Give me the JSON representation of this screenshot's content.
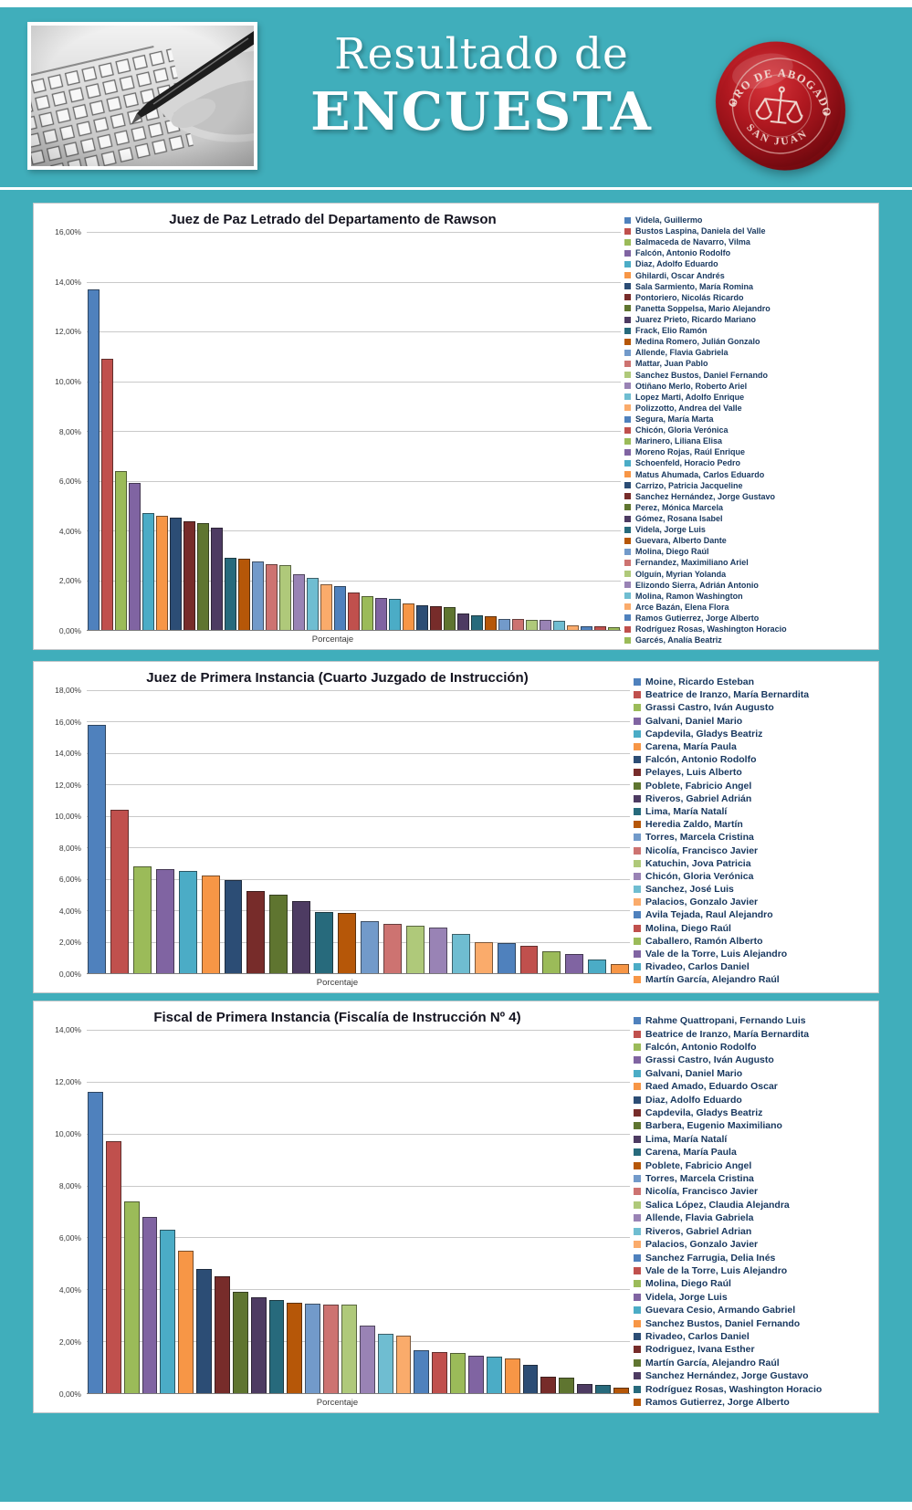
{
  "header": {
    "title_line1": "Resultado de",
    "title_line2": "ENCUESTA",
    "seal_top": "FORO DE ABOGADOS",
    "seal_bottom": "SAN JUAN",
    "seal_star": "✦"
  },
  "colors": {
    "background": "#40AEBB",
    "seal_wax": "#A6141B",
    "legend_text": "#17375E"
  },
  "palette": [
    "#4F81BD",
    "#C0504D",
    "#9BBB59",
    "#8064A2",
    "#4BACC6",
    "#F79646",
    "#2C4D75",
    "#772C2A",
    "#5F7530",
    "#4D3B62",
    "#276A7C",
    "#B65708",
    "#729ACA",
    "#CD7371",
    "#AFC97A",
    "#9983B5",
    "#6FBDD1",
    "#FAAB6B"
  ],
  "chart_data": [
    {
      "type": "bar",
      "title": "Juez de Paz Letrado del Departamento de Rawson",
      "xlabel": "Porcentaje",
      "ylim": [
        0,
        16
      ],
      "yticks": [
        "16,00%",
        "14,00%",
        "12,00%",
        "10,00%",
        "8,00%",
        "6,00%",
        "4,00%",
        "2,00%",
        "0,00%"
      ],
      "grid": true,
      "legend_position": "right",
      "categories": [
        "Videla, Guillermo",
        "Bustos Laspina, Daniela del Valle",
        "Balmaceda de Navarro, Vilma",
        "Falcón, Antonio Rodolfo",
        "Diaz, Adolfo Eduardo",
        "Ghilardi, Oscar Andrés",
        "Sala Sarmiento, María Romina",
        "Pontoriero, Nicolás Ricardo",
        "Panetta Soppelsa, Mario Alejandro",
        "Juarez Prieto, Ricardo Mariano",
        "Frack, Elio Ramón",
        "Medina Romero, Julián Gonzalo",
        "Allende, Flavia Gabriela",
        "Mattar, Juan Pablo",
        "Sanchez Bustos, Daniel Fernando",
        "Otiñano Merlo, Roberto Ariel",
        "Lopez Marti, Adolfo Enrique",
        "Polizzotto, Andrea del Valle",
        "Segura, María Marta",
        "Chicón, Gloria Verónica",
        "Marinero, Liliana Elisa",
        "Moreno Rojas, Raúl Enrique",
        "Schoenfeld, Horacio Pedro",
        "Matus Ahumada, Carlos Eduardo",
        "Carrizo, Patricia Jacqueline",
        "Sanchez Hernández, Jorge Gustavo",
        "Perez, Mónica Marcela",
        "Gómez, Rosana Isabel",
        "Videla, Jorge Luis",
        "Guevara, Alberto Dante",
        "Molina, Diego Raúl",
        "Fernandez, Maximiliano Ariel",
        "Olguín, Myrian Yolanda",
        "Elizondo Sierra, Adrián Antonio",
        "Molina, Ramon Washington",
        "Arce Bazán, Elena Flora",
        "Ramos Gutierrez, Jorge Alberto",
        "Rodríguez Rosas, Washington Horacio",
        "Garcés, Analía Beatriz"
      ],
      "values": [
        13.7,
        10.9,
        6.4,
        5.9,
        4.7,
        4.6,
        4.5,
        4.35,
        4.3,
        4.1,
        2.9,
        2.85,
        2.75,
        2.65,
        2.6,
        2.25,
        2.1,
        1.85,
        1.75,
        1.5,
        1.35,
        1.3,
        1.25,
        1.05,
        1.0,
        0.95,
        0.9,
        0.65,
        0.6,
        0.55,
        0.45,
        0.45,
        0.4,
        0.4,
        0.35,
        0.2,
        0.15,
        0.15,
        0.1
      ]
    },
    {
      "type": "bar",
      "title": "Juez de Primera Instancia (Cuarto Juzgado de Instrucción)",
      "xlabel": "Porcentaje",
      "ylim": [
        0,
        18
      ],
      "yticks": [
        "18,00%",
        "16,00%",
        "14,00%",
        "12,00%",
        "10,00%",
        "8,00%",
        "6,00%",
        "4,00%",
        "2,00%",
        "0,00%"
      ],
      "grid": true,
      "legend_position": "right",
      "categories": [
        "Moine, Ricardo Esteban",
        "Beatrice de Iranzo, María Bernardita",
        "Grassi Castro, Iván Augusto",
        "Galvani, Daniel Mario",
        "Capdevila, Gladys Beatriz",
        "Carena, María Paula",
        "Falcón, Antonio Rodolfo",
        "Pelayes, Luis Alberto",
        "Poblete, Fabricio Angel",
        "Riveros, Gabriel Adrián",
        "Lima, María Natalí",
        "Heredia Zaldo, Martín",
        "Torres, Marcela Cristina",
        "Nicolía, Francisco Javier",
        "Katuchin, Jova Patricia",
        "Chicón, Gloria Verónica",
        "Sanchez, José Luis",
        "Palacios, Gonzalo Javier",
        "Avila Tejada, Raul Alejandro",
        "Molina, Diego Raúl",
        "Caballero, Ramón Alberto",
        "Vale de la Torre, Luis Alejandro",
        "Rivadeo, Carlos Daniel",
        "Martín García, Alejandro Raúl"
      ],
      "values": [
        15.8,
        10.4,
        6.8,
        6.6,
        6.5,
        6.2,
        5.9,
        5.2,
        5.0,
        4.6,
        3.9,
        3.85,
        3.3,
        3.15,
        3.0,
        2.9,
        2.5,
        2.0,
        1.9,
        1.75,
        1.4,
        1.2,
        0.9,
        0.6
      ]
    },
    {
      "type": "bar",
      "title": "Fiscal de Primera Instancia (Fiscalía de Instrucción Nº 4)",
      "xlabel": "Porcentaje",
      "ylim": [
        0,
        14
      ],
      "yticks": [
        "14,00%",
        "12,00%",
        "10,00%",
        "8,00%",
        "6,00%",
        "4,00%",
        "2,00%",
        "0,00%"
      ],
      "grid": true,
      "legend_position": "right",
      "categories": [
        "Rahme Quattropani, Fernando Luis",
        "Beatrice de Iranzo, María Bernardita",
        "Falcón, Antonio Rodolfo",
        "Grassi Castro, Iván Augusto",
        "Galvani, Daniel Mario",
        "Raed Amado, Eduardo Oscar",
        "Diaz, Adolfo Eduardo",
        "Capdevila, Gladys Beatriz",
        "Barbera, Eugenio Maximiliano",
        "Lima, María Natalí",
        "Carena, María Paula",
        "Poblete, Fabricio Angel",
        "Torres, Marcela Cristina",
        "Nicolía, Francisco Javier",
        "Salica López, Claudia Alejandra",
        "Allende, Flavia Gabriela",
        "Riveros, Gabriel Adrian",
        "Palacios, Gonzalo Javier",
        "Sanchez Farrugia, Delia Inés",
        "Vale de la Torre, Luis Alejandro",
        "Molina, Diego Raúl",
        "Videla, Jorge Luis",
        "Guevara Cesio, Armando Gabriel",
        "Sanchez Bustos, Daniel Fernando",
        "Rivadeo, Carlos Daniel",
        "Rodriguez, Ivana Esther",
        "Martín García, Alejandro Raúl",
        "Sanchez Hernández, Jorge Gustavo",
        "Rodríguez Rosas, Washington Horacio",
        "Ramos Gutierrez, Jorge Alberto"
      ],
      "values": [
        11.6,
        9.7,
        7.4,
        6.8,
        6.3,
        5.5,
        4.8,
        4.5,
        3.9,
        3.7,
        3.6,
        3.5,
        3.45,
        3.4,
        3.4,
        2.6,
        2.3,
        2.2,
        1.65,
        1.6,
        1.55,
        1.45,
        1.4,
        1.35,
        1.1,
        0.65,
        0.6,
        0.35,
        0.3,
        0.2
      ]
    }
  ]
}
